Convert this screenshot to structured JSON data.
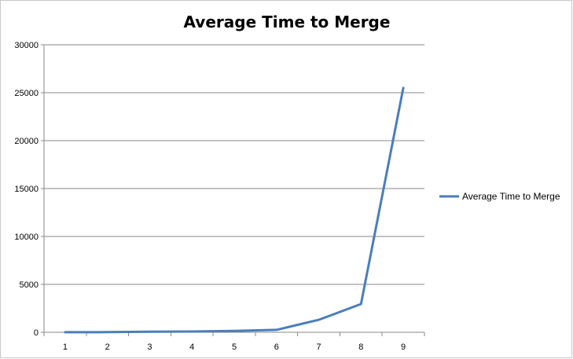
{
  "chart_data": {
    "type": "line",
    "title": "Average Time to Merge",
    "xlabel": "",
    "ylabel": "",
    "categories": [
      "1",
      "2",
      "3",
      "4",
      "5",
      "6",
      "7",
      "8",
      "9"
    ],
    "series": [
      {
        "name": "Average Time to Merge",
        "values": [
          10,
          20,
          60,
          80,
          150,
          250,
          1300,
          2950,
          25500
        ],
        "color": "#4a7ebb"
      }
    ],
    "ylim": [
      0,
      30000
    ],
    "yticks": [
      "0",
      "5000",
      "10000",
      "15000",
      "20000",
      "25000",
      "30000"
    ],
    "grid": true,
    "legend": "right"
  }
}
